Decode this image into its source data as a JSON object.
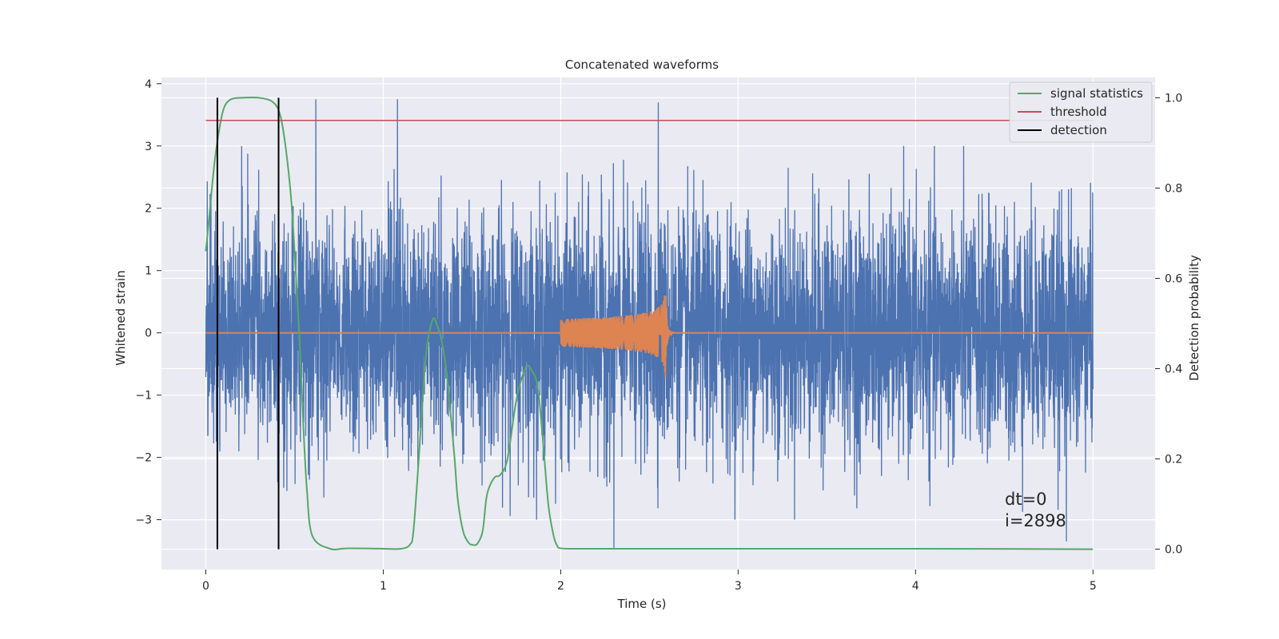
{
  "chart_data": {
    "type": "line",
    "title": "Concatenated waveforms",
    "xlabel": "Time (s)",
    "ylabel_left": "Whitened strain",
    "ylabel_right": "Detection probability",
    "xlim": [
      -0.25,
      5.35
    ],
    "ylim_left": [
      -3.8,
      4.1
    ],
    "ylim_right": [
      -0.045,
      1.045
    ],
    "x_ticks": [
      0,
      1,
      2,
      3,
      4,
      5
    ],
    "y_ticks_left": [
      -3,
      -2,
      -1,
      0,
      1,
      2,
      3,
      4
    ],
    "y_ticks_left_labels": [
      "−3",
      "−2",
      "−1",
      "0",
      "1",
      "2",
      "3",
      "4"
    ],
    "y_ticks_right": [
      0.0,
      0.2,
      0.4,
      0.6,
      0.8,
      1.0
    ],
    "y_ticks_right_labels": [
      "0.0",
      "0.2",
      "0.4",
      "0.6",
      "0.8",
      "1.0"
    ],
    "grid": true,
    "legend_position": "top-right",
    "colors": {
      "background": "#eaeaf2",
      "strain": "#4c72b0",
      "template": "#dd8452",
      "signal_statistics": "#55a868",
      "threshold": "#c44e52",
      "detection": "#000000"
    },
    "series": [
      {
        "name": "",
        "axis": "left",
        "description_kind": "noise",
        "x_range": [
          0,
          5
        ],
        "typical_amplitude": 1.2,
        "peak_values": [
          {
            "x": 0.62,
            "y": 3.75
          },
          {
            "x": 1.08,
            "y": 3.75
          },
          {
            "x": 2.55,
            "y": 3.7
          },
          {
            "x": 2.3,
            "y": -3.45
          },
          {
            "x": 4.85,
            "y": -3.35
          }
        ]
      },
      {
        "name": "",
        "axis": "left",
        "chirp_start": 2.0,
        "chirp_merger": 2.59,
        "peak_amplitude": 0.75,
        "x_range": [
          0,
          5
        ]
      },
      {
        "name": "signal statistics",
        "axis": "right",
        "x": [
          0,
          0.02,
          0.05,
          0.08,
          0.1,
          0.12,
          0.15,
          0.2,
          0.3,
          0.38,
          0.42,
          0.45,
          0.48,
          0.5,
          0.53,
          0.55,
          0.57,
          0.6,
          0.7,
          0.8,
          1.0,
          1.1,
          1.15,
          1.17,
          1.2,
          1.23,
          1.25,
          1.28,
          1.3,
          1.33,
          1.36,
          1.4,
          1.42,
          1.45,
          1.48,
          1.5,
          1.53,
          1.56,
          1.58,
          1.6,
          1.63,
          1.66,
          1.7,
          1.75,
          1.8,
          1.83,
          1.87,
          1.9,
          1.93,
          1.96,
          1.98,
          2.0,
          2.1,
          2.5,
          3.0,
          4.0,
          5.0
        ],
        "y": [
          0.66,
          0.74,
          0.86,
          0.94,
          0.975,
          0.99,
          0.998,
          1.0,
          1.0,
          0.99,
          0.96,
          0.89,
          0.78,
          0.66,
          0.45,
          0.27,
          0.13,
          0.03,
          0.001,
          0.002,
          0.001,
          0.001,
          0.01,
          0.04,
          0.2,
          0.38,
          0.46,
          0.51,
          0.5,
          0.46,
          0.38,
          0.21,
          0.11,
          0.04,
          0.015,
          0.01,
          0.012,
          0.04,
          0.11,
          0.14,
          0.16,
          0.165,
          0.2,
          0.33,
          0.4,
          0.4,
          0.36,
          0.24,
          0.1,
          0.03,
          0.008,
          0.002,
          0.001,
          0.001,
          0.001,
          0.001,
          0.0
        ]
      },
      {
        "name": "threshold",
        "axis": "right",
        "x": [
          0,
          5
        ],
        "y": [
          0.95,
          0.95
        ]
      },
      {
        "name": "detection",
        "axis": "right",
        "x": [
          0.065,
          0.41
        ],
        "y_range": [
          0,
          1
        ]
      }
    ],
    "legend": [
      {
        "label": "signal statistics",
        "color": "#55a868"
      },
      {
        "label": "threshold",
        "color": "#c44e52"
      },
      {
        "label": "detection",
        "color": "#000000"
      }
    ],
    "annotations": {
      "dt": "dt=0",
      "i": "i=2898"
    }
  }
}
